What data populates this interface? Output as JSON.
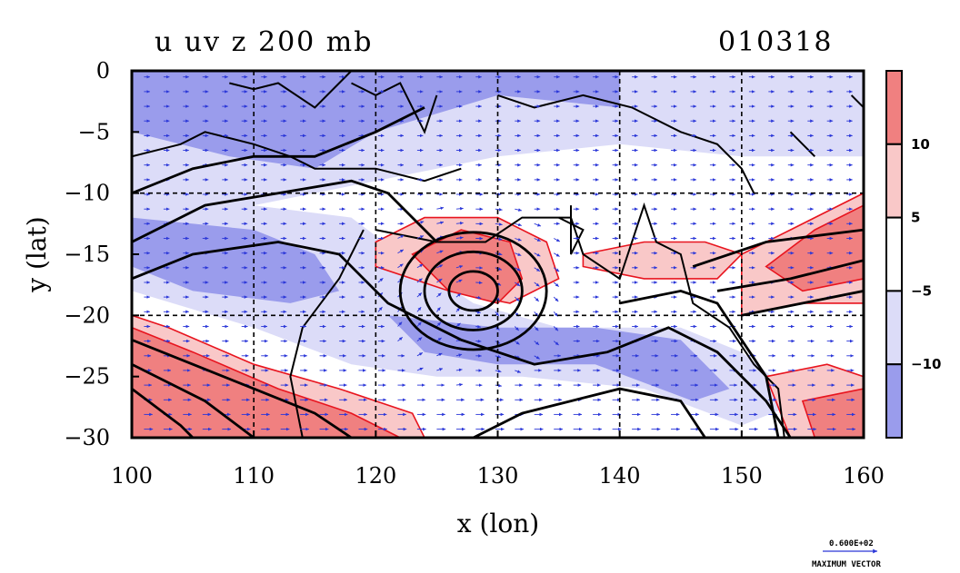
{
  "chart_data": {
    "type": "heatmap",
    "title": "u uv z 200 mb",
    "date_label": "010318",
    "xlabel": "x (lon)",
    "ylabel": "y (lat)",
    "xlim": [
      100,
      160
    ],
    "ylim": [
      -30,
      0
    ],
    "x_ticks": [
      "100",
      "110",
      "120",
      "130",
      "140",
      "150",
      "160"
    ],
    "y_ticks": [
      "0",
      "−5",
      "−10",
      "−15",
      "−20",
      "−25",
      "−30"
    ],
    "grid": true,
    "shading_levels": [
      {
        "range": "> 10",
        "color": "#f08080"
      },
      {
        "range": "5 to 10",
        "color": "#f9c8c8"
      },
      {
        "range": "-5 to 5",
        "color": "#ffffff"
      },
      {
        "range": "-10 to -5",
        "color": "#dcdcf8"
      },
      {
        "range": "< -10",
        "color": "#9a9cec"
      }
    ],
    "colorbar_labels": [
      "10",
      "5",
      "−5",
      "−10"
    ],
    "vector_label": "0.600E+02",
    "vector_caption": "MAXIMUM VECTOR",
    "jet_low_center": {
      "lon": 128,
      "lat": -18
    }
  }
}
